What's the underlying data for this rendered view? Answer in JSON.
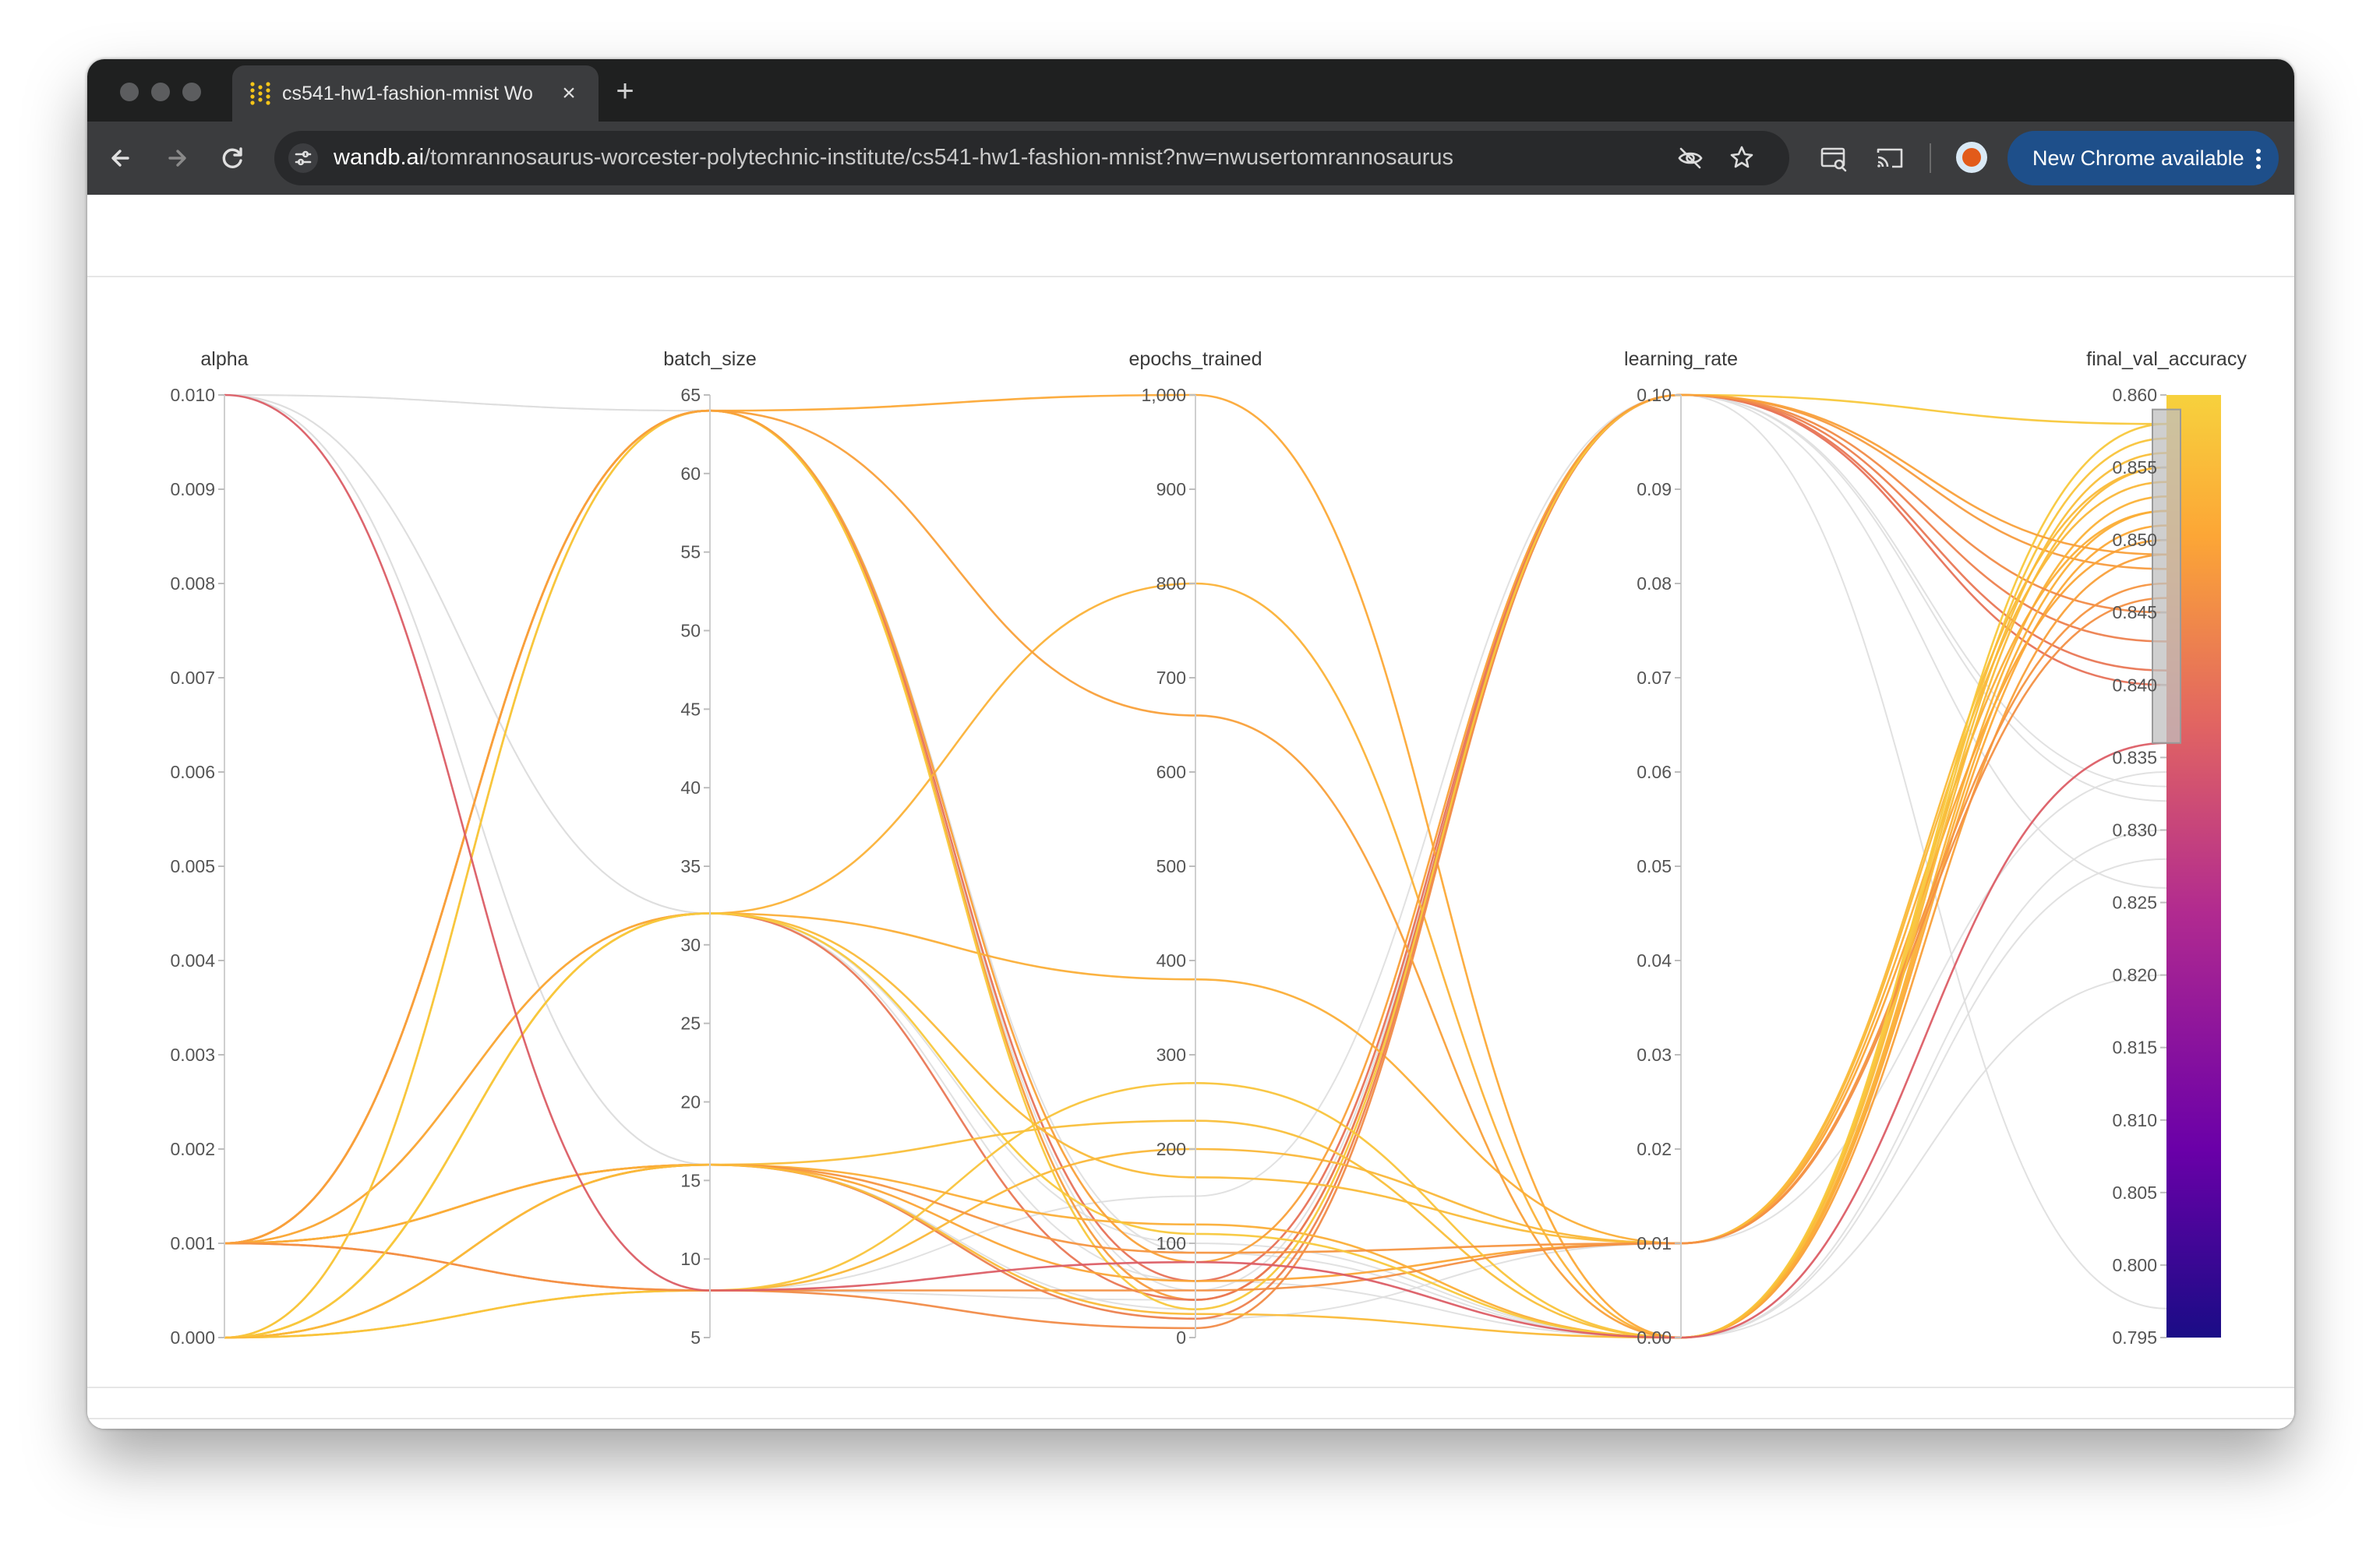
{
  "browser": {
    "tab": {
      "title": "cs541-hw1-fashion-mnist Wo",
      "close_icon": "close-icon"
    },
    "new_tab_label": "+",
    "address": {
      "host": "wandb.ai",
      "path": "/tomrannosaurus-worcester-polytechnic-institute/cs541-hw1-fashion-mnist?nw=nwusertomrannosaurus"
    },
    "update_button_label": "New Chrome available",
    "colors": {
      "tabbar": "#1f2020",
      "toolbar": "#3b3c3e",
      "update_button": "#1e4f8a"
    }
  },
  "chart_data": {
    "type": "parallel_coordinates",
    "axes": [
      {
        "name": "alpha",
        "range": [
          0,
          0.01
        ],
        "ticks": [
          "0.000",
          "0.001",
          "0.002",
          "0.003",
          "0.004",
          "0.005",
          "0.006",
          "0.007",
          "0.008",
          "0.009",
          "0.010"
        ]
      },
      {
        "name": "batch_size",
        "range": [
          5,
          65
        ],
        "ticks": [
          "5",
          "10",
          "15",
          "20",
          "25",
          "30",
          "35",
          "40",
          "45",
          "50",
          "55",
          "60",
          "65"
        ]
      },
      {
        "name": "epochs_trained",
        "range": [
          0,
          1000
        ],
        "ticks": [
          "0",
          "100",
          "200",
          "300",
          "400",
          "500",
          "600",
          "700",
          "800",
          "900",
          "1,000"
        ]
      },
      {
        "name": "learning_rate",
        "range": [
          0,
          0.1
        ],
        "ticks": [
          "0.00",
          "0.01",
          "0.02",
          "0.03",
          "0.04",
          "0.05",
          "0.06",
          "0.07",
          "0.08",
          "0.09",
          "0.10"
        ]
      },
      {
        "name": "final_val_accuracy",
        "range": [
          0.795,
          0.86
        ],
        "ticks": [
          "0.795",
          "0.800",
          "0.805",
          "0.810",
          "0.815",
          "0.820",
          "0.825",
          "0.830",
          "0.835",
          "0.840",
          "0.845",
          "0.850",
          "0.855",
          "0.860"
        ]
      }
    ],
    "color_scale": {
      "metric": "final_val_accuracy",
      "stops": [
        "#1a0c86",
        "#6a00a8",
        "#b12a90",
        "#e16462",
        "#fca636",
        "#f7d13d"
      ]
    },
    "brush_range": [
      0.836,
      0.859
    ],
    "runs": [
      {
        "values": [
          0.001,
          64,
          60,
          0.1,
          0.84
        ]
      },
      {
        "values": [
          0.001,
          64,
          40,
          0.1,
          0.848
        ]
      },
      {
        "values": [
          0.0,
          64,
          1000,
          0.0,
          0.851
        ]
      },
      {
        "values": [
          0.001,
          32,
          40,
          0.1,
          0.841
        ]
      },
      {
        "values": [
          0.0,
          32,
          800,
          0.0,
          0.853
        ]
      },
      {
        "values": [
          0.001,
          32,
          380,
          0.01,
          0.852
        ]
      },
      {
        "values": [
          0.001,
          16,
          20,
          0.1,
          0.843
        ]
      },
      {
        "values": [
          0.0,
          16,
          230,
          0.0,
          0.856
        ]
      },
      {
        "values": [
          0.001,
          16,
          60,
          0.01,
          0.85
        ]
      },
      {
        "values": [
          0.0,
          8,
          200,
          0.01,
          0.854
        ]
      },
      {
        "values": [
          0.001,
          8,
          10,
          0.1,
          0.845
        ]
      },
      {
        "values": [
          0.0,
          8,
          270,
          0.0,
          0.857
        ]
      },
      {
        "values": [
          0.001,
          64,
          660,
          0.0,
          0.849
        ]
      },
      {
        "values": [
          0.0,
          32,
          170,
          0.01,
          0.855
        ]
      },
      {
        "values": [
          0.001,
          16,
          120,
          0.0,
          0.852
        ]
      },
      {
        "values": [
          0.0,
          64,
          30,
          0.1,
          0.858
        ]
      },
      {
        "values": [
          0.0,
          16,
          90,
          0.01,
          0.847
        ]
      },
      {
        "values": [
          0.001,
          8,
          50,
          0.01,
          0.846
        ]
      },
      {
        "values": [
          0.0,
          32,
          110,
          0.0,
          0.858
        ]
      },
      {
        "values": [
          0.001,
          64,
          80,
          0.1,
          0.849
        ]
      },
      {
        "values": [
          0.0,
          16,
          25,
          0.0,
          0.855
        ]
      },
      {
        "values": [
          0.01,
          32,
          100,
          0.0,
          0.83
        ]
      },
      {
        "values": [
          0.01,
          64,
          50,
          0.1,
          0.826
        ]
      },
      {
        "values": [
          0.01,
          16,
          20,
          0.01,
          0.834
        ]
      },
      {
        "values": [
          0.01,
          8,
          150,
          0.1,
          0.832
        ]
      },
      {
        "values": [
          0.01,
          32,
          60,
          0.0,
          0.82
        ]
      },
      {
        "values": [
          0.01,
          8,
          80,
          0.0,
          0.836
        ]
      },
      {
        "values": [
          0.01,
          16,
          30,
          0.1,
          0.797
        ]
      },
      {
        "values": [
          0.01,
          64,
          90,
          0.0,
          0.828
        ]
      },
      {
        "values": [
          0.01,
          8,
          40,
          0.1,
          0.833
        ]
      }
    ]
  }
}
